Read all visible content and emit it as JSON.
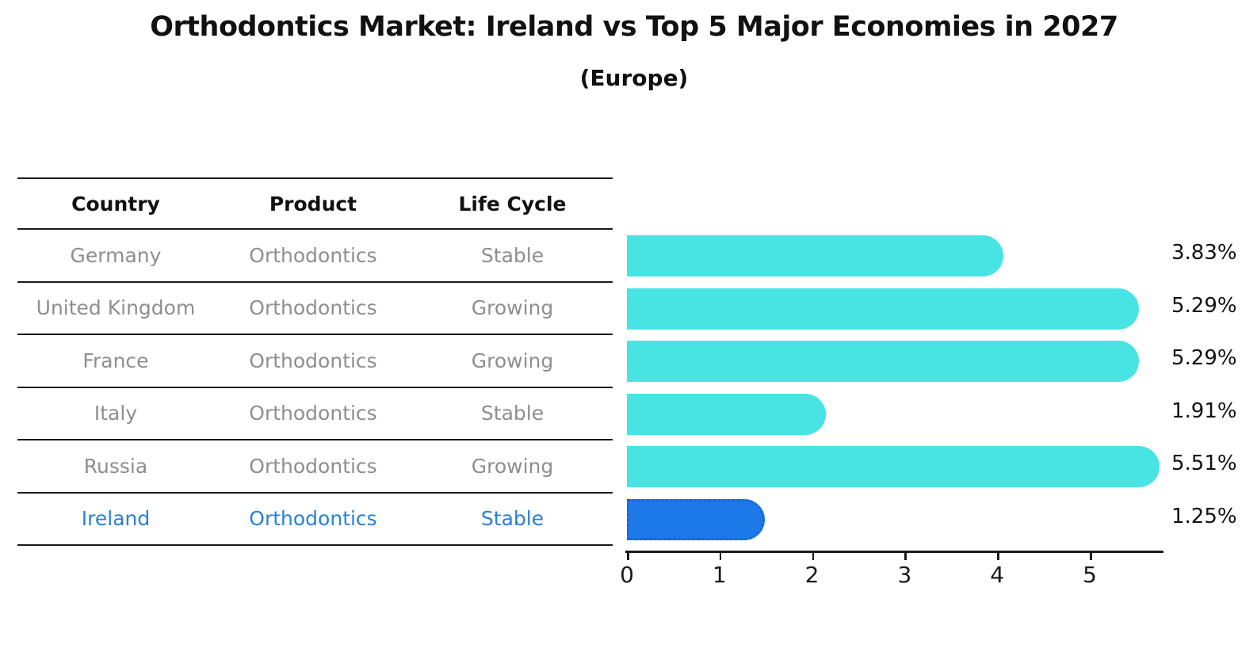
{
  "title": "Orthodontics Market: Ireland vs Top 5 Major Economies in 2027",
  "subtitle": "(Europe)",
  "table": {
    "headers": [
      "Country",
      "Product",
      "Life Cycle"
    ],
    "rows": [
      {
        "country": "Germany",
        "product": "Orthodontics",
        "life_cycle": "Stable",
        "highlight": false
      },
      {
        "country": "United Kingdom",
        "product": "Orthodontics",
        "life_cycle": "Growing",
        "highlight": false
      },
      {
        "country": "France",
        "product": "Orthodontics",
        "life_cycle": "Growing",
        "highlight": false
      },
      {
        "country": "Italy",
        "product": "Orthodontics",
        "life_cycle": "Stable",
        "highlight": false
      },
      {
        "country": "Russia",
        "product": "Orthodontics",
        "life_cycle": "Growing",
        "highlight": false
      },
      {
        "country": "Ireland",
        "product": "Orthodontics",
        "life_cycle": "Stable",
        "highlight": true
      }
    ]
  },
  "chart_data": {
    "type": "bar",
    "orientation": "horizontal",
    "title": "Orthodontics Market: Ireland vs Top 5 Major Economies in 2027",
    "subtitle": "(Europe)",
    "categories": [
      "Germany",
      "United Kingdom",
      "France",
      "Italy",
      "Russia",
      "Ireland"
    ],
    "values": [
      3.83,
      5.29,
      5.29,
      1.91,
      5.51,
      1.25
    ],
    "value_labels": [
      "3.83%",
      "5.29%",
      "5.29%",
      "1.91%",
      "5.51%",
      "1.25%"
    ],
    "xticks": [
      0,
      1,
      2,
      3,
      4,
      5
    ],
    "xlim": [
      0,
      5.79
    ],
    "xlabel": "",
    "ylabel": "",
    "grid": false,
    "legend": "none",
    "bar_color": "#48E4E4",
    "highlight_index": 5,
    "highlight_bar_color": "#1D79E8",
    "highlight_bar_border_color": "#1565DC",
    "highlight_text_color": "#2B80D4",
    "text_color": "#8e8e8e"
  }
}
